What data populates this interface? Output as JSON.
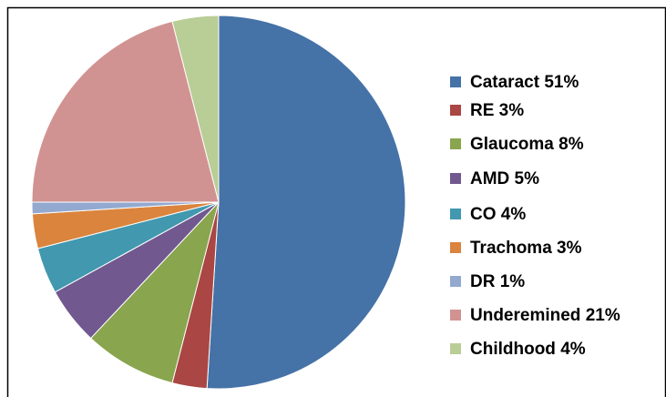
{
  "chart_data": {
    "type": "pie",
    "categories": [
      "Cataract 51%",
      "RE 3%",
      "Glaucoma 8%",
      "AMD 5%",
      "CO 4%",
      "Trachoma 3%",
      "DR 1%",
      "Underemined 21%",
      "Childhood 4%"
    ],
    "values": [
      51,
      3,
      8,
      5,
      4,
      3,
      1,
      21,
      4
    ],
    "colors": [
      "#4572a7",
      "#aa4643",
      "#89a54e",
      "#71588f",
      "#4198af",
      "#db843d",
      "#93a9cf",
      "#d19392",
      "#b9cd96"
    ],
    "legend": "right"
  }
}
